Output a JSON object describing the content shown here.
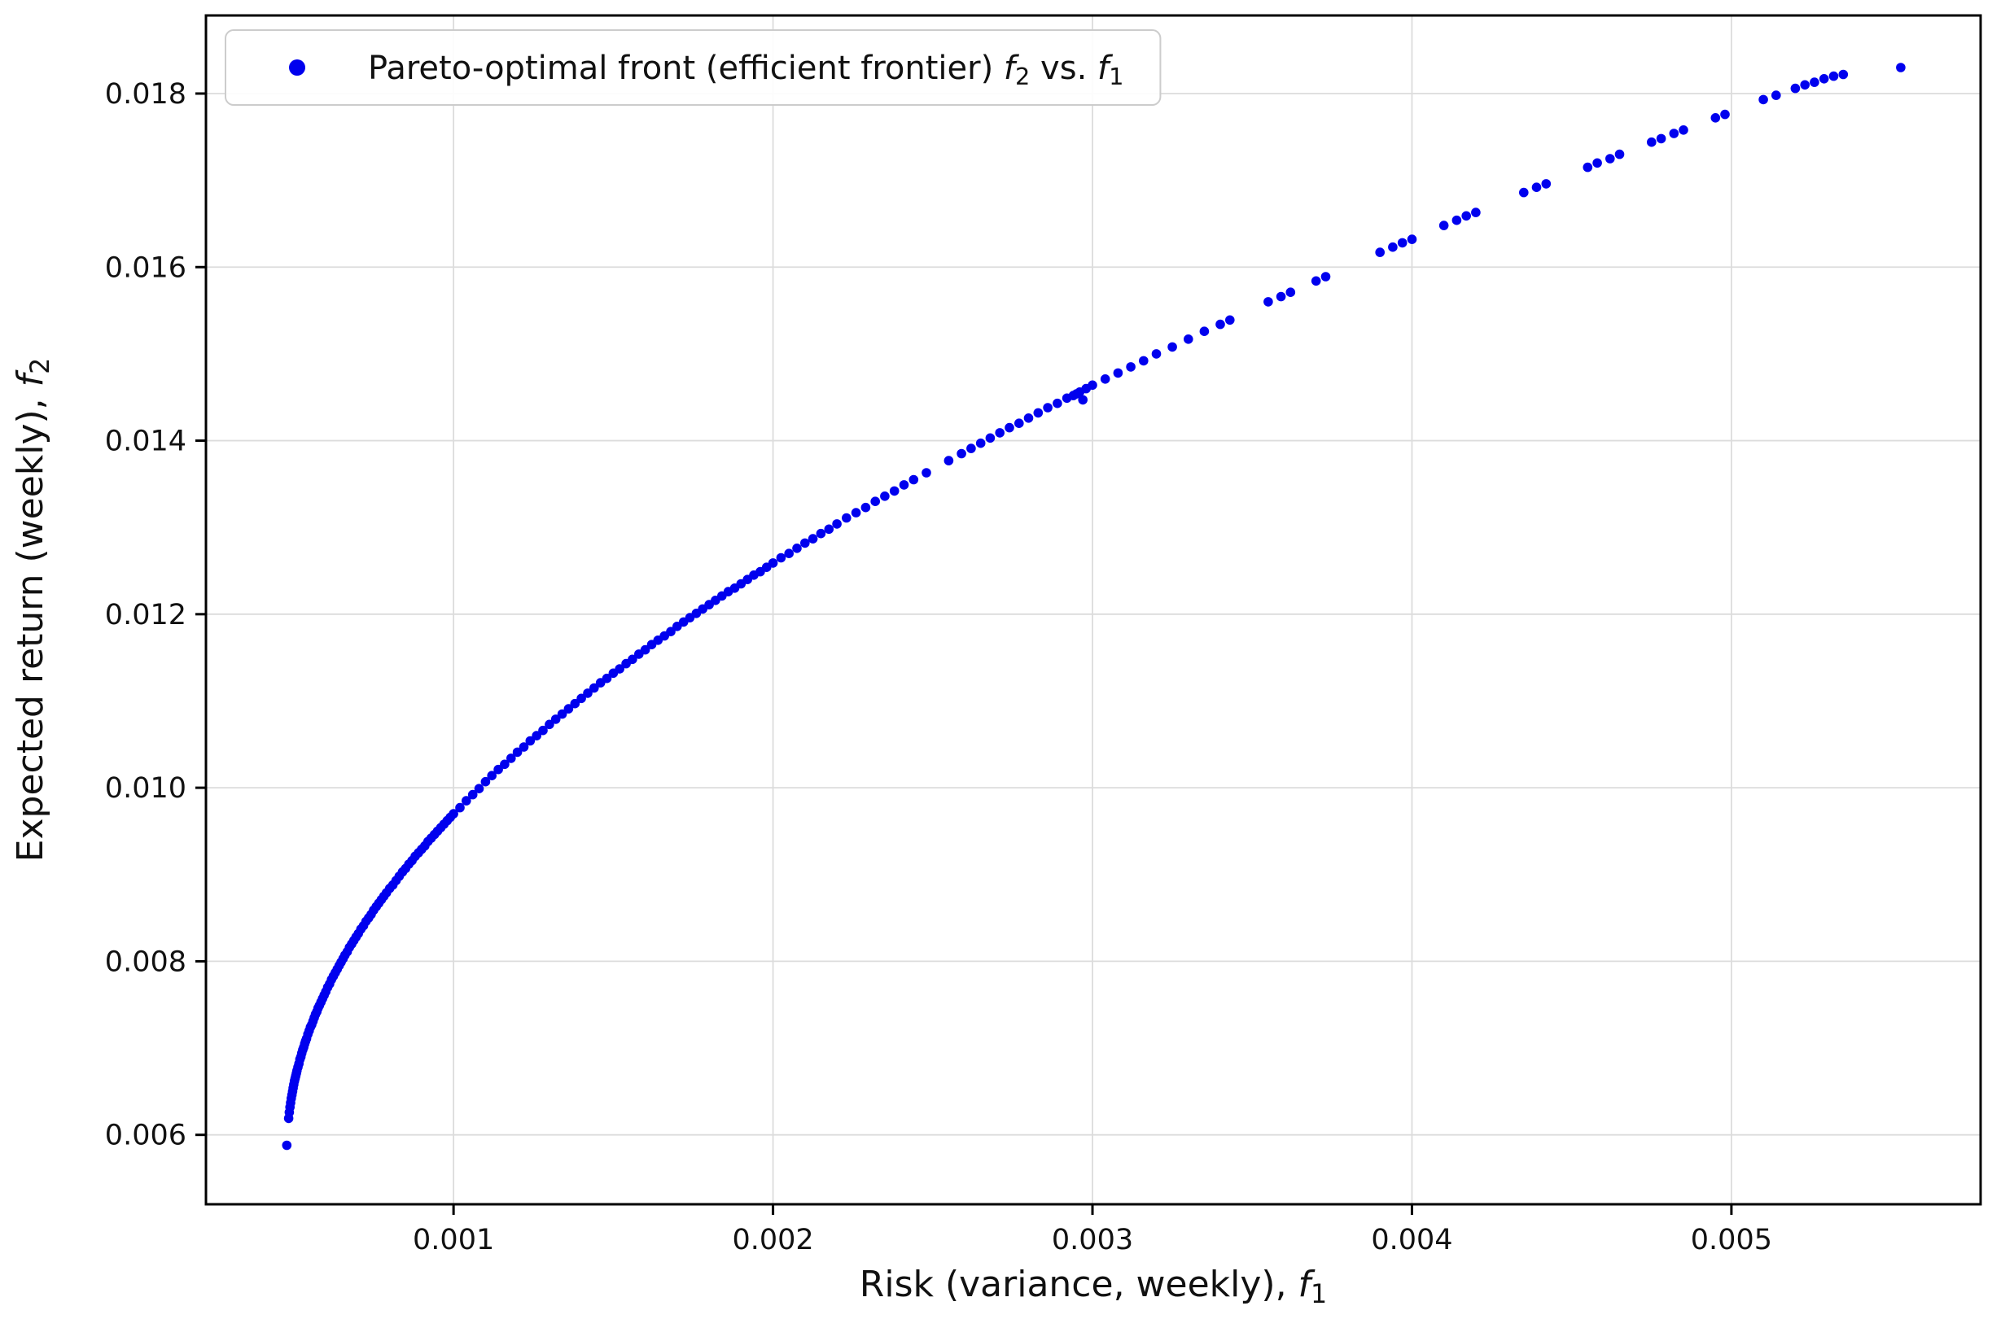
{
  "chart_data": {
    "type": "scatter",
    "title": "",
    "xlabel": "Risk (variance, weekly), f1",
    "ylabel": "Expected return (weekly), f2",
    "xlabel_parts": [
      {
        "t": "Risk (variance, weekly), "
      },
      {
        "t": "f",
        "i": true
      },
      {
        "t": "1",
        "sub": true
      }
    ],
    "ylabel_parts": [
      {
        "t": "Expected return (weekly), "
      },
      {
        "t": "f",
        "i": true
      },
      {
        "t": "2",
        "sub": true
      }
    ],
    "xlim": [
      0.000225,
      0.00578
    ],
    "ylim": [
      0.0052,
      0.0189
    ],
    "xticks": [
      {
        "v": 0.001,
        "t": "0.001"
      },
      {
        "v": 0.002,
        "t": "0.002"
      },
      {
        "v": 0.003,
        "t": "0.003"
      },
      {
        "v": 0.004,
        "t": "0.004"
      },
      {
        "v": 0.005,
        "t": "0.005"
      }
    ],
    "yticks": [
      {
        "v": 0.006,
        "t": "0.006"
      },
      {
        "v": 0.008,
        "t": "0.008"
      },
      {
        "v": 0.01,
        "t": "0.010"
      },
      {
        "v": 0.012,
        "t": "0.012"
      },
      {
        "v": 0.014,
        "t": "0.014"
      },
      {
        "v": 0.016,
        "t": "0.016"
      },
      {
        "v": 0.018,
        "t": "0.018"
      }
    ],
    "grid": true,
    "grid_color": "#dcdcdc",
    "axis_color": "#000000",
    "tick_label_color": "#111111",
    "legend": {
      "location": "upper left",
      "label": "Pareto-optimal front (efficient frontier) f2 vs. f1",
      "label_parts": [
        {
          "t": "Pareto-optimal front (efficient frontier) "
        },
        {
          "t": "f",
          "i": true
        },
        {
          "t": "2",
          "sub": true
        },
        {
          "t": " vs. "
        },
        {
          "t": "f",
          "i": true
        },
        {
          "t": "1",
          "sub": true
        }
      ]
    },
    "series": [
      {
        "name": "Pareto-optimal front (efficient frontier) f2 vs. f1",
        "color": "#0000ee",
        "marker": "circle",
        "points": [
          [
            0.000478,
            0.00588
          ],
          [
            0.000484,
            0.00619
          ],
          [
            0.000486,
            0.00626
          ],
          [
            0.000488,
            0.00632
          ],
          [
            0.00049,
            0.00637
          ],
          [
            0.000492,
            0.00642
          ],
          [
            0.000494,
            0.00646
          ],
          [
            0.000496,
            0.0065
          ],
          [
            0.000498,
            0.00654
          ],
          [
            0.0005,
            0.00658
          ],
          [
            0.000502,
            0.00662
          ],
          [
            0.000504,
            0.00665
          ],
          [
            0.000506,
            0.00668
          ],
          [
            0.000508,
            0.00671
          ],
          [
            0.00051,
            0.00674
          ],
          [
            0.000513,
            0.00678
          ],
          [
            0.000516,
            0.00682
          ],
          [
            0.000519,
            0.00687
          ],
          [
            0.000522,
            0.0069
          ],
          [
            0.000525,
            0.00694
          ],
          [
            0.000528,
            0.00698
          ],
          [
            0.000531,
            0.00701
          ],
          [
            0.000534,
            0.00705
          ],
          [
            0.000537,
            0.00708
          ],
          [
            0.00054,
            0.00711
          ],
          [
            0.000544,
            0.00716
          ],
          [
            0.000548,
            0.0072
          ],
          [
            0.000552,
            0.00724
          ],
          [
            0.000556,
            0.00727
          ],
          [
            0.00056,
            0.00731
          ],
          [
            0.000564,
            0.00735
          ],
          [
            0.000568,
            0.00739
          ],
          [
            0.000572,
            0.00742
          ],
          [
            0.000576,
            0.00746
          ],
          [
            0.00058,
            0.00749
          ],
          [
            0.000585,
            0.00753
          ],
          [
            0.00059,
            0.00757
          ],
          [
            0.000595,
            0.00761
          ],
          [
            0.0006,
            0.00765
          ],
          [
            0.000606,
            0.0077
          ],
          [
            0.000612,
            0.00774
          ],
          [
            0.000618,
            0.00779
          ],
          [
            0.000624,
            0.00783
          ],
          [
            0.00063,
            0.00787
          ],
          [
            0.000636,
            0.00791
          ],
          [
            0.000642,
            0.00795
          ],
          [
            0.000648,
            0.00799
          ],
          [
            0.000654,
            0.00803
          ],
          [
            0.00066,
            0.00807
          ],
          [
            0.000667,
            0.00811
          ],
          [
            0.000674,
            0.00816
          ],
          [
            0.000681,
            0.0082
          ],
          [
            0.000688,
            0.00824
          ],
          [
            0.000695,
            0.00828
          ],
          [
            0.000702,
            0.00832
          ],
          [
            0.00071,
            0.00837
          ],
          [
            0.000718,
            0.00841
          ],
          [
            0.000726,
            0.00846
          ],
          [
            0.000734,
            0.0085
          ],
          [
            0.000742,
            0.00854
          ],
          [
            0.00075,
            0.00859
          ],
          [
            0.000758,
            0.00863
          ],
          [
            0.000766,
            0.00867
          ],
          [
            0.000774,
            0.00871
          ],
          [
            0.000782,
            0.00875
          ],
          [
            0.00079,
            0.00879
          ],
          [
            0.0008,
            0.00884
          ],
          [
            0.00081,
            0.00888
          ],
          [
            0.00082,
            0.00893
          ],
          [
            0.00083,
            0.00898
          ],
          [
            0.00084,
            0.00903
          ],
          [
            0.00085,
            0.00907
          ],
          [
            0.00086,
            0.00912
          ],
          [
            0.00087,
            0.00916
          ],
          [
            0.00088,
            0.00921
          ],
          [
            0.00089,
            0.00925
          ],
          [
            0.0009,
            0.00929
          ],
          [
            0.00091,
            0.00933
          ],
          [
            0.00092,
            0.00938
          ],
          [
            0.00093,
            0.00942
          ],
          [
            0.00094,
            0.00946
          ],
          [
            0.00095,
            0.0095
          ],
          [
            0.00096,
            0.00954
          ],
          [
            0.00097,
            0.00958
          ],
          [
            0.00098,
            0.00962
          ],
          [
            0.00099,
            0.00966
          ],
          [
            0.001,
            0.0097
          ],
          [
            0.00102,
            0.00977
          ],
          [
            0.00104,
            0.00985
          ],
          [
            0.00106,
            0.00992
          ],
          [
            0.00108,
            0.00999
          ],
          [
            0.0011,
            0.01007
          ],
          [
            0.00112,
            0.01014
          ],
          [
            0.00114,
            0.01021
          ],
          [
            0.00116,
            0.01027
          ],
          [
            0.00118,
            0.01034
          ],
          [
            0.0012,
            0.01041
          ],
          [
            0.00122,
            0.01047
          ],
          [
            0.00124,
            0.01054
          ],
          [
            0.00126,
            0.0106
          ],
          [
            0.00128,
            0.01066
          ],
          [
            0.0013,
            0.01073
          ],
          [
            0.00132,
            0.01079
          ],
          [
            0.00134,
            0.01085
          ],
          [
            0.00136,
            0.01091
          ],
          [
            0.00138,
            0.01097
          ],
          [
            0.0014,
            0.01103
          ],
          [
            0.00142,
            0.01109
          ],
          [
            0.00144,
            0.01115
          ],
          [
            0.00146,
            0.01121
          ],
          [
            0.00148,
            0.01126
          ],
          [
            0.0015,
            0.01132
          ],
          [
            0.00152,
            0.01137
          ],
          [
            0.00154,
            0.01143
          ],
          [
            0.00156,
            0.01148
          ],
          [
            0.00158,
            0.01154
          ],
          [
            0.0016,
            0.01159
          ],
          [
            0.00162,
            0.01165
          ],
          [
            0.00164,
            0.0117
          ],
          [
            0.00166,
            0.01175
          ],
          [
            0.00168,
            0.0118
          ],
          [
            0.0017,
            0.01186
          ],
          [
            0.00172,
            0.01191
          ],
          [
            0.00174,
            0.01196
          ],
          [
            0.00176,
            0.01201
          ],
          [
            0.00178,
            0.01206
          ],
          [
            0.0018,
            0.01211
          ],
          [
            0.00182,
            0.01216
          ],
          [
            0.00184,
            0.01221
          ],
          [
            0.00186,
            0.01226
          ],
          [
            0.00188,
            0.0123
          ],
          [
            0.0019,
            0.01235
          ],
          [
            0.00192,
            0.0124
          ],
          [
            0.00194,
            0.01245
          ],
          [
            0.00196,
            0.01249
          ],
          [
            0.00198,
            0.01254
          ],
          [
            0.002,
            0.01259
          ],
          [
            0.002025,
            0.01265
          ],
          [
            0.00205,
            0.0127
          ],
          [
            0.002075,
            0.01276
          ],
          [
            0.0021,
            0.01282
          ],
          [
            0.002125,
            0.01287
          ],
          [
            0.00215,
            0.01293
          ],
          [
            0.002175,
            0.01298
          ],
          [
            0.0022,
            0.01304
          ],
          [
            0.00223,
            0.01311
          ],
          [
            0.00226,
            0.01317
          ],
          [
            0.00229,
            0.01323
          ],
          [
            0.00232,
            0.0133
          ],
          [
            0.00235,
            0.01336
          ],
          [
            0.00238,
            0.01342
          ],
          [
            0.00241,
            0.01349
          ],
          [
            0.00244,
            0.01355
          ],
          [
            0.00248,
            0.01363
          ],
          [
            0.00255,
            0.01377
          ],
          [
            0.00259,
            0.01385
          ],
          [
            0.00262,
            0.01391
          ],
          [
            0.00265,
            0.01397
          ],
          [
            0.00268,
            0.01403
          ],
          [
            0.00271,
            0.01409
          ],
          [
            0.00274,
            0.01415
          ],
          [
            0.00277,
            0.0142
          ],
          [
            0.0028,
            0.01426
          ],
          [
            0.00283,
            0.01432
          ],
          [
            0.00286,
            0.01438
          ],
          [
            0.00289,
            0.01443
          ],
          [
            0.00292,
            0.01449
          ],
          [
            0.00294,
            0.01452
          ],
          [
            0.00295,
            0.01454
          ],
          [
            0.00296,
            0.01456
          ],
          [
            0.00297,
            0.01447
          ],
          [
            0.00298,
            0.0146
          ],
          [
            0.003,
            0.01464
          ],
          [
            0.00304,
            0.01471
          ],
          [
            0.00308,
            0.01478
          ],
          [
            0.00312,
            0.01485
          ],
          [
            0.00316,
            0.01492
          ],
          [
            0.0032,
            0.015
          ],
          [
            0.00325,
            0.01508
          ],
          [
            0.0033,
            0.01517
          ],
          [
            0.00335,
            0.01526
          ],
          [
            0.0034,
            0.01534
          ],
          [
            0.00343,
            0.01539
          ],
          [
            0.00355,
            0.0156
          ],
          [
            0.00359,
            0.01566
          ],
          [
            0.00362,
            0.01571
          ],
          [
            0.0037,
            0.01584
          ],
          [
            0.00373,
            0.01589
          ],
          [
            0.0039,
            0.01617
          ],
          [
            0.00394,
            0.01623
          ],
          [
            0.00397,
            0.01628
          ],
          [
            0.004,
            0.01632
          ],
          [
            0.0041,
            0.01648
          ],
          [
            0.00414,
            0.01654
          ],
          [
            0.00417,
            0.01659
          ],
          [
            0.0042,
            0.01663
          ],
          [
            0.00435,
            0.01686
          ],
          [
            0.00439,
            0.01692
          ],
          [
            0.00442,
            0.01696
          ],
          [
            0.00455,
            0.01715
          ],
          [
            0.00458,
            0.0172
          ],
          [
            0.00462,
            0.01725
          ],
          [
            0.00465,
            0.0173
          ],
          [
            0.00475,
            0.01744
          ],
          [
            0.00478,
            0.01748
          ],
          [
            0.00482,
            0.01754
          ],
          [
            0.00485,
            0.01758
          ],
          [
            0.00495,
            0.01772
          ],
          [
            0.00498,
            0.01776
          ],
          [
            0.0051,
            0.01793
          ],
          [
            0.00514,
            0.01798
          ],
          [
            0.0052,
            0.01806
          ],
          [
            0.00523,
            0.0181
          ],
          [
            0.00526,
            0.01813
          ],
          [
            0.00529,
            0.01817
          ],
          [
            0.00532,
            0.0182
          ],
          [
            0.00535,
            0.01822
          ],
          [
            0.00553,
            0.0183
          ]
        ]
      }
    ]
  }
}
